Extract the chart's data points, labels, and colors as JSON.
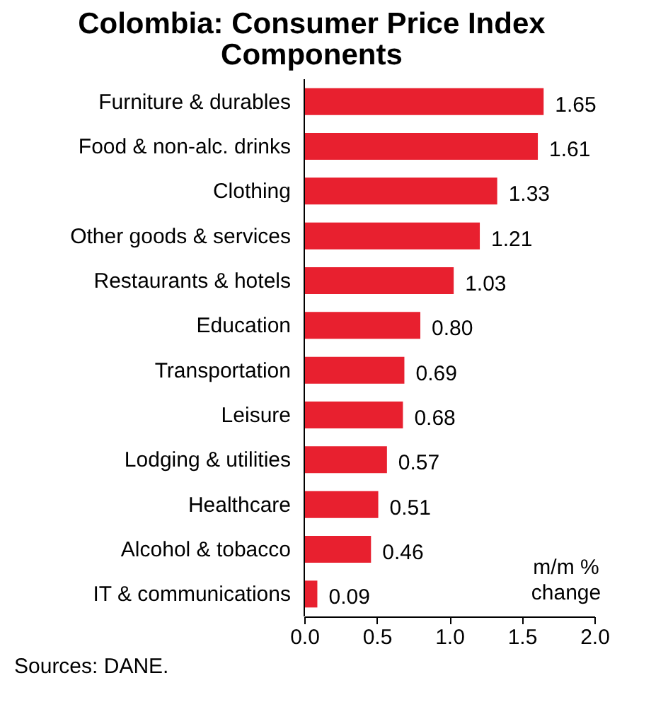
{
  "chart_data": {
    "type": "bar",
    "orientation": "horizontal",
    "title": "Colombia: Consumer Price Index Components",
    "categories": [
      "Furniture & durables",
      "Food & non-alc. drinks",
      "Clothing",
      "Other goods & services",
      "Restaurants & hotels",
      "Education",
      "Transportation",
      "Leisure",
      "Lodging & utilities",
      "Healthcare",
      "Alcohol & tobacco",
      "IT & communications"
    ],
    "values": [
      1.65,
      1.61,
      1.33,
      1.21,
      1.03,
      0.8,
      0.69,
      0.68,
      0.57,
      0.51,
      0.46,
      0.09
    ],
    "color": "#e8202f",
    "value_labels": [
      "1.65",
      "1.61",
      "1.33",
      "1.21",
      "1.03",
      "0.80",
      "0.69",
      "0.68",
      "0.57",
      "0.51",
      "0.46",
      "0.09"
    ],
    "xlim": [
      0,
      2
    ],
    "xticks": [
      {
        "value": 0,
        "label": "0.0"
      },
      {
        "value": 0.5,
        "label": "0.5"
      },
      {
        "value": 1,
        "label": "1.0"
      },
      {
        "value": 1.5,
        "label": "1.5"
      },
      {
        "value": 2,
        "label": "2.0"
      }
    ],
    "annotations": [
      "m/m % change",
      "Sources: DANE."
    ]
  }
}
